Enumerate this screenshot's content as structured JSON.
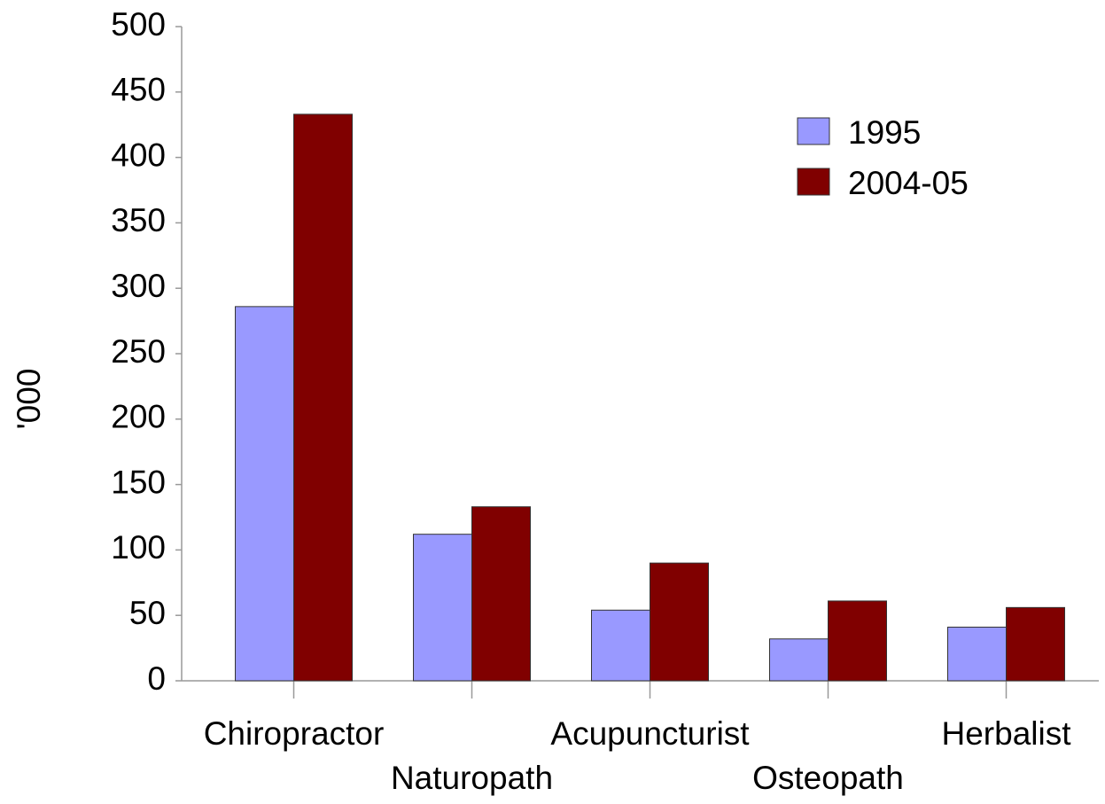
{
  "chart_data": {
    "type": "bar",
    "y_label": "'000",
    "categories": [
      "Chiropractor",
      "Naturopath",
      "Acupuncturist",
      "Osteopath",
      "Herbalist"
    ],
    "series": [
      {
        "name": "1995",
        "color": "#9999ff",
        "values": [
          286,
          112,
          54,
          32,
          41
        ]
      },
      {
        "name": "2004-05",
        "color": "#800000",
        "values": [
          433,
          133,
          90,
          61,
          56
        ]
      }
    ],
    "ylim": [
      0,
      500
    ],
    "yticks": [
      0,
      50,
      100,
      150,
      200,
      250,
      300,
      350,
      400,
      450,
      500
    ],
    "grid": false,
    "legend": "top-right"
  }
}
